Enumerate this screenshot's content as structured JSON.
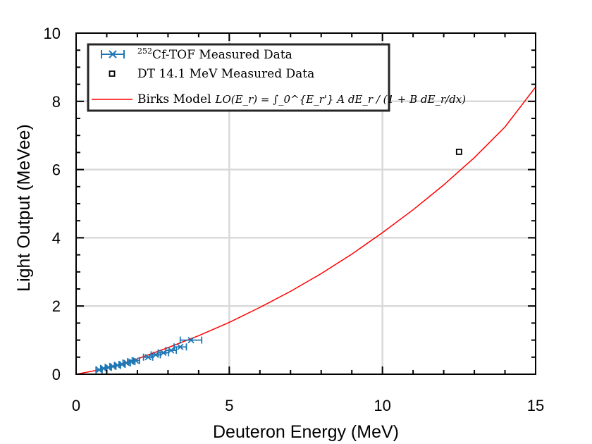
{
  "chart_data": {
    "type": "scatter",
    "xlabel": "Deuteron Energy (MeV)",
    "ylabel": "Light Output (MeVee)",
    "xlim": [
      0,
      15
    ],
    "ylim": [
      0,
      10
    ],
    "xticks": [
      0,
      5,
      10,
      15
    ],
    "yticks": [
      0,
      2,
      4,
      6,
      8,
      10
    ],
    "grid": true,
    "legend_position": "top-left",
    "colors": {
      "tof": "#1f77b4",
      "dt": "#000000",
      "model": "#ff0000"
    },
    "series": [
      {
        "name": "252Cf-TOF Measured Data",
        "legend_sup": "252",
        "legend_main": "Cf-TOF Measured Data",
        "marker": "x",
        "x": [
          0.75,
          0.9,
          1.05,
          1.2,
          1.35,
          1.5,
          1.65,
          1.8,
          1.95,
          2.35,
          2.6,
          2.85,
          3.1,
          3.4,
          3.75
        ],
        "y": [
          0.13,
          0.17,
          0.2,
          0.23,
          0.26,
          0.29,
          0.33,
          0.37,
          0.4,
          0.5,
          0.57,
          0.63,
          0.7,
          0.8,
          1.0
        ],
        "xerr": [
          0.1,
          0.1,
          0.1,
          0.1,
          0.1,
          0.1,
          0.12,
          0.12,
          0.12,
          0.15,
          0.15,
          0.17,
          0.17,
          0.2,
          0.35
        ]
      },
      {
        "name": "DT 14.1 MeV Measured Data",
        "marker": "square",
        "x": [
          12.5
        ],
        "y": [
          6.52
        ]
      },
      {
        "name": "Birks Model",
        "legend_main": "Birks Model",
        "legend_formula": "LO(E_r) = ∫_0^{E_r'} A dE_r / (1 + B dE_r/dx)",
        "line": true,
        "x": [
          0,
          1,
          2,
          3,
          4,
          5,
          6,
          7,
          8,
          9,
          10,
          11,
          12,
          13,
          14,
          15
        ],
        "y": [
          0,
          0.17,
          0.45,
          0.78,
          1.13,
          1.52,
          1.96,
          2.43,
          2.95,
          3.52,
          4.15,
          4.82,
          5.55,
          6.35,
          7.25,
          8.42
        ]
      }
    ]
  }
}
